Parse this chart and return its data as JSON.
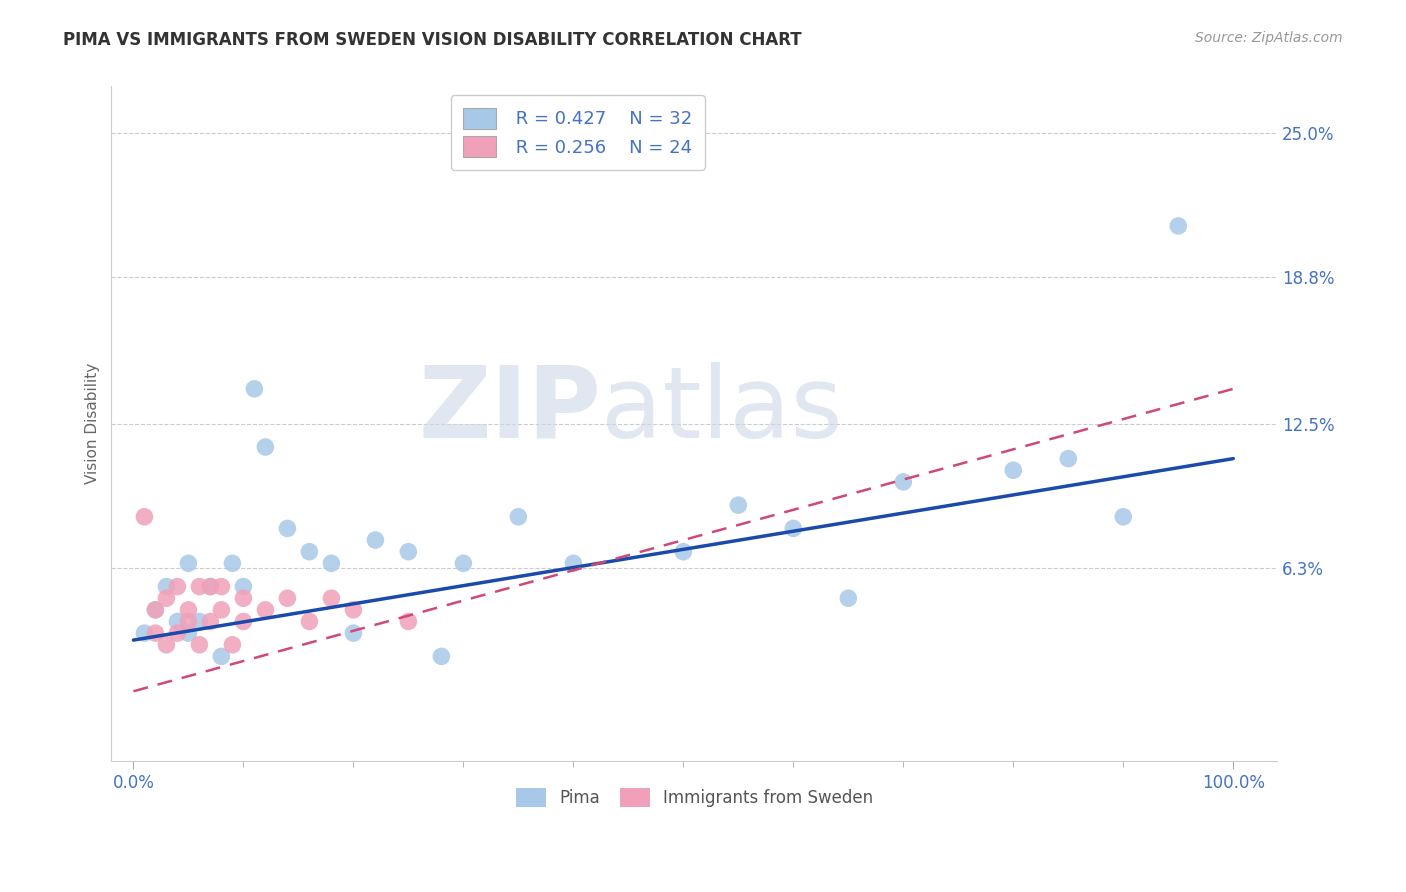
{
  "title": "PIMA VS IMMIGRANTS FROM SWEDEN VISION DISABILITY CORRELATION CHART",
  "source_text": "Source: ZipAtlas.com",
  "ylabel": "Vision Disability",
  "legend_r1": "R = 0.427",
  "legend_n1": "N = 32",
  "legend_r2": "R = 0.256",
  "legend_n2": "N = 24",
  "color_pima": "#a8c8e8",
  "color_sweden": "#f0a0b8",
  "line_color_pima": "#1a4aaa",
  "line_color_sweden": "#d04878",
  "watermark_zip": "ZIP",
  "watermark_atlas": "atlas",
  "pima_x": [
    1,
    2,
    3,
    4,
    5,
    5,
    6,
    7,
    8,
    9,
    10,
    11,
    12,
    14,
    16,
    18,
    20,
    22,
    25,
    28,
    30,
    35,
    40,
    50,
    55,
    60,
    65,
    70,
    80,
    85,
    90,
    95
  ],
  "pima_y": [
    3.5,
    4.5,
    5.5,
    4.0,
    3.5,
    6.5,
    4.0,
    5.5,
    2.5,
    6.5,
    5.5,
    14.0,
    11.5,
    8.0,
    7.0,
    6.5,
    3.5,
    7.5,
    7.0,
    2.5,
    6.5,
    8.5,
    6.5,
    7.0,
    9.0,
    8.0,
    5.0,
    10.0,
    10.5,
    11.0,
    8.5,
    21.0
  ],
  "sweden_x": [
    1,
    2,
    2,
    3,
    3,
    4,
    4,
    5,
    5,
    6,
    6,
    7,
    7,
    8,
    8,
    9,
    10,
    10,
    12,
    14,
    16,
    18,
    20,
    25
  ],
  "sweden_y": [
    8.5,
    3.5,
    4.5,
    3.0,
    5.0,
    3.5,
    5.5,
    4.0,
    4.5,
    3.0,
    5.5,
    4.0,
    5.5,
    4.5,
    5.5,
    3.0,
    4.0,
    5.0,
    4.5,
    5.0,
    4.0,
    5.0,
    4.5,
    4.0
  ],
  "pima_line_x0": 0,
  "pima_line_x1": 100,
  "pima_line_y0": 3.2,
  "pima_line_y1": 11.0,
  "sweden_line_x0": 0,
  "sweden_line_x1": 100,
  "sweden_line_y0": 1.0,
  "sweden_line_y1": 14.0,
  "ytick_vals": [
    0,
    6.3,
    12.5,
    18.8,
    25.0
  ],
  "ytick_labels": [
    "",
    "6.3%",
    "12.5%",
    "18.8%",
    "25.0%"
  ],
  "xtick_vals": [
    0,
    100
  ],
  "xtick_labels": [
    "0.0%",
    "100.0%"
  ],
  "xlim": [
    -2,
    104
  ],
  "ylim": [
    -2,
    27
  ],
  "tick_color": "#4472c4",
  "title_fontsize": 12,
  "source_fontsize": 10,
  "axis_label_fontsize": 11,
  "tick_fontsize": 12
}
